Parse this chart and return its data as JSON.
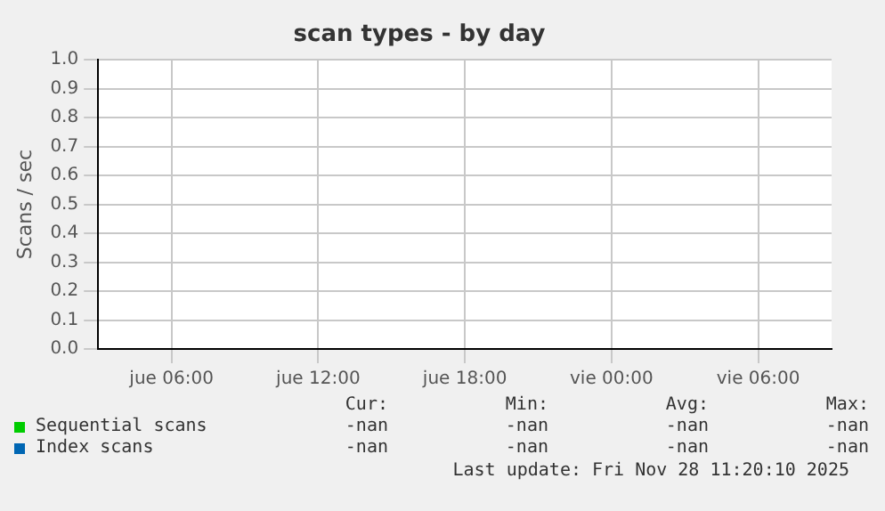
{
  "chart_data": {
    "type": "line",
    "title": "scan types - by day",
    "ylabel": "Scans / sec",
    "categories": [
      "jue 06:00",
      "jue 12:00",
      "jue 18:00",
      "vie 00:00",
      "vie 06:00"
    ],
    "ylim": [
      0,
      1
    ],
    "yticks": [
      {
        "value": 0,
        "label": "0.0"
      },
      0.1,
      0.2,
      0.3,
      0.4,
      0.5,
      0.6,
      0.7,
      0.8,
      0.9,
      {
        "value": 1,
        "label": "1.0"
      }
    ],
    "grid": true,
    "legend": "bottom left",
    "series": [
      {
        "name": "Sequential scans",
        "color": "#00cc00",
        "values": [
          null,
          null,
          null,
          null,
          null
        ]
      },
      {
        "name": "Index scans",
        "color": "#0066b3",
        "values": [
          null,
          null,
          null,
          null,
          null
        ]
      }
    ],
    "annotations": [
      "Cur:",
      "Min:",
      "Avg:",
      "Max:",
      "-nan",
      "-nan",
      "-nan",
      "-nan",
      "-nan",
      "-nan",
      "-nan",
      "-nan",
      "Last update: Fri Nov 28 11:20:10 2025"
    ]
  }
}
